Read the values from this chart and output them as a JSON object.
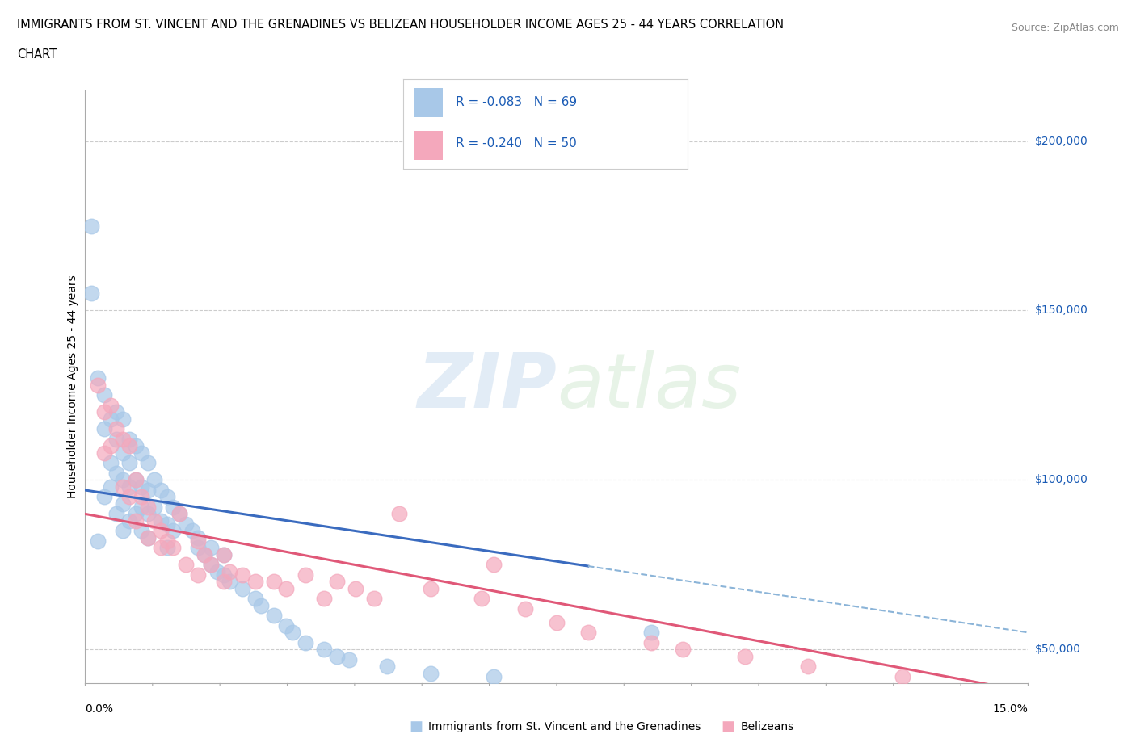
{
  "title_line1": "IMMIGRANTS FROM ST. VINCENT AND THE GRENADINES VS BELIZEAN HOUSEHOLDER INCOME AGES 25 - 44 YEARS CORRELATION",
  "title_line2": "CHART",
  "source_text": "Source: ZipAtlas.com",
  "ylabel": "Householder Income Ages 25 - 44 years",
  "xlim": [
    0.0,
    0.15
  ],
  "ylim": [
    40000,
    215000
  ],
  "ytick_values": [
    50000,
    100000,
    150000,
    200000
  ],
  "ytick_labels": [
    "$50,000",
    "$100,000",
    "$150,000",
    "$200,000"
  ],
  "watermark_zip": "ZIP",
  "watermark_atlas": "atlas",
  "legend_r1": "R = -0.083",
  "legend_n1": "N = 69",
  "legend_r2": "R = -0.240",
  "legend_n2": "N = 50",
  "color_blue": "#A8C8E8",
  "color_pink": "#F4A8BC",
  "line_color_blue": "#3A6BBF",
  "line_color_pink": "#E05878",
  "line_color_dashed": "#8BB4D8",
  "legend_text_color": "#1A5BB5",
  "background_color": "#FFFFFF",
  "grid_color": "#CCCCCC",
  "blue_x": [
    0.001,
    0.001,
    0.002,
    0.002,
    0.003,
    0.003,
    0.003,
    0.004,
    0.004,
    0.004,
    0.005,
    0.005,
    0.005,
    0.005,
    0.006,
    0.006,
    0.006,
    0.006,
    0.006,
    0.007,
    0.007,
    0.007,
    0.007,
    0.008,
    0.008,
    0.008,
    0.009,
    0.009,
    0.009,
    0.009,
    0.01,
    0.01,
    0.01,
    0.01,
    0.011,
    0.011,
    0.012,
    0.012,
    0.013,
    0.013,
    0.013,
    0.014,
    0.014,
    0.015,
    0.016,
    0.017,
    0.018,
    0.018,
    0.019,
    0.02,
    0.02,
    0.021,
    0.022,
    0.022,
    0.023,
    0.025,
    0.027,
    0.028,
    0.03,
    0.032,
    0.033,
    0.035,
    0.038,
    0.04,
    0.042,
    0.048,
    0.055,
    0.065,
    0.09
  ],
  "blue_y": [
    175000,
    155000,
    130000,
    82000,
    125000,
    115000,
    95000,
    118000,
    105000,
    98000,
    120000,
    112000,
    102000,
    90000,
    118000,
    108000,
    100000,
    93000,
    85000,
    112000,
    105000,
    98000,
    88000,
    110000,
    100000,
    90000,
    108000,
    98000,
    92000,
    85000,
    105000,
    97000,
    90000,
    83000,
    100000,
    92000,
    97000,
    88000,
    95000,
    87000,
    80000,
    92000,
    85000,
    90000,
    87000,
    85000,
    83000,
    80000,
    78000,
    80000,
    75000,
    73000,
    78000,
    72000,
    70000,
    68000,
    65000,
    63000,
    60000,
    57000,
    55000,
    52000,
    50000,
    48000,
    47000,
    45000,
    43000,
    42000,
    55000
  ],
  "pink_x": [
    0.002,
    0.003,
    0.003,
    0.004,
    0.004,
    0.005,
    0.006,
    0.006,
    0.007,
    0.007,
    0.008,
    0.008,
    0.009,
    0.01,
    0.01,
    0.011,
    0.012,
    0.012,
    0.013,
    0.014,
    0.015,
    0.016,
    0.018,
    0.018,
    0.019,
    0.02,
    0.022,
    0.022,
    0.023,
    0.025,
    0.027,
    0.03,
    0.032,
    0.035,
    0.038,
    0.04,
    0.043,
    0.046,
    0.05,
    0.055,
    0.063,
    0.065,
    0.07,
    0.075,
    0.08,
    0.09,
    0.095,
    0.105,
    0.115,
    0.13
  ],
  "pink_y": [
    128000,
    120000,
    108000,
    122000,
    110000,
    115000,
    112000,
    98000,
    110000,
    95000,
    100000,
    88000,
    95000,
    92000,
    83000,
    88000,
    85000,
    80000,
    82000,
    80000,
    90000,
    75000,
    82000,
    72000,
    78000,
    75000,
    78000,
    70000,
    73000,
    72000,
    70000,
    70000,
    68000,
    72000,
    65000,
    70000,
    68000,
    65000,
    90000,
    68000,
    65000,
    75000,
    62000,
    58000,
    55000,
    52000,
    50000,
    48000,
    45000,
    42000
  ],
  "blue_line_x_start": 0.0,
  "blue_line_x_end": 0.08,
  "pink_line_x_start": 0.0,
  "pink_line_x_end": 0.15,
  "dashed_line_x_start": 0.08,
  "dashed_line_x_end": 0.15,
  "blue_intercept": 97000,
  "blue_slope": -280000,
  "pink_intercept": 90000,
  "pink_slope": -350000
}
